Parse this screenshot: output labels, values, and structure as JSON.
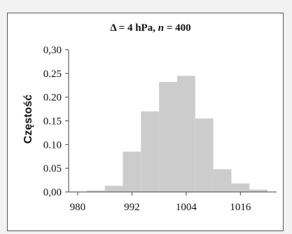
{
  "chart_data": {
    "type": "bar",
    "title": "Δ = 4 hPa, n = 400",
    "title_parts": {
      "delta": "Δ",
      "equals1": " = 4 hPa, ",
      "n": "n",
      "equals2": " = 400"
    },
    "xlabel": "",
    "ylabel": "Częstość",
    "x_ticks": [
      "980",
      "992",
      "1004",
      "1016"
    ],
    "x_tick_values": [
      980,
      992,
      1004,
      1016
    ],
    "y_ticks": [
      "0,00",
      "0.05",
      "0.10",
      "0.15",
      "0.20",
      "0.25",
      "0,30"
    ],
    "y_tick_values": [
      0,
      0.05,
      0.1,
      0.15,
      0.2,
      0.25,
      0.3
    ],
    "xlim": [
      978,
      1024
    ],
    "ylim": [
      0,
      0.3
    ],
    "bin_width": 4,
    "bins": [
      {
        "x0": 982,
        "x1": 986,
        "value": 0.003
      },
      {
        "x0": 986,
        "x1": 990,
        "value": 0.013
      },
      {
        "x0": 990,
        "x1": 994,
        "value": 0.085
      },
      {
        "x0": 994,
        "x1": 998,
        "value": 0.17
      },
      {
        "x0": 998,
        "x1": 1002,
        "value": 0.232
      },
      {
        "x0": 1002,
        "x1": 1006,
        "value": 0.245
      },
      {
        "x0": 1006,
        "x1": 1010,
        "value": 0.155
      },
      {
        "x0": 1010,
        "x1": 1014,
        "value": 0.048
      },
      {
        "x0": 1014,
        "x1": 1018,
        "value": 0.018
      },
      {
        "x0": 1018,
        "x1": 1022,
        "value": 0.005
      }
    ],
    "grid": false,
    "legend": "none",
    "bar_color": "#cccccc",
    "axis_color": "#444444"
  }
}
